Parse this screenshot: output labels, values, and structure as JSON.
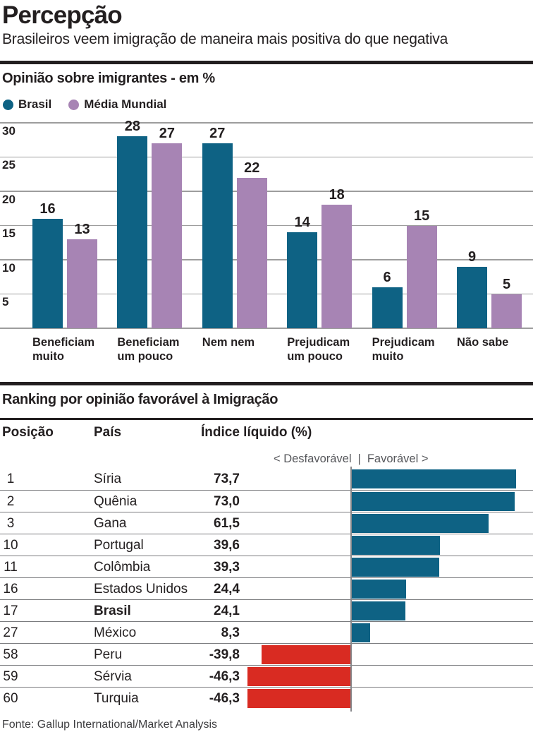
{
  "page": {
    "title": "Percepção",
    "subtitle": "Brasileiros veem imigração de maneira mais positiva do que negativa",
    "source": "Fonte: Gallup International/Market Analysis"
  },
  "colors": {
    "text": "#231f20",
    "brasil": "#0e6284",
    "media_mundial": "#a784b4",
    "negative": "#d92b22",
    "grid": "#9d9d9d"
  },
  "chart_data": [
    {
      "type": "bar",
      "title": "Opinião sobre imigrantes - em %",
      "categories": [
        [
          "Beneficiam",
          "muito"
        ],
        [
          "Beneficiam",
          "um pouco"
        ],
        [
          "Nem nem"
        ],
        [
          "Prejudicam",
          "um pouco"
        ],
        [
          "Prejudicam",
          "muito"
        ],
        [
          "Não sabe"
        ]
      ],
      "series": [
        {
          "name": "Brasil",
          "color": "#0e6284",
          "values": [
            16,
            28,
            27,
            14,
            6,
            9
          ]
        },
        {
          "name": "Média Mundial",
          "color": "#a784b4",
          "values": [
            13,
            27,
            22,
            18,
            15,
            5
          ]
        }
      ],
      "yticks": [
        5,
        10,
        15,
        20,
        25,
        30
      ],
      "ylim": [
        0,
        31
      ],
      "grid": true,
      "legend_position": "top-left",
      "ylabel": "",
      "xlabel": ""
    },
    {
      "type": "bar-horizontal",
      "title": "Ranking por opinião favorável à Imigração",
      "columns": [
        "Posição",
        "País",
        "Índice líquido (%)"
      ],
      "direction_labels": {
        "left": "< Desfavorável",
        "separator": "|",
        "right": "Favorável >"
      },
      "positive_color": "#0e6284",
      "negative_color": "#d92b22",
      "xlim": [
        -75,
        80
      ],
      "rows": [
        {
          "position": "1",
          "country": "Síria",
          "value": 73.7,
          "display": "73,7",
          "bold": false
        },
        {
          "position": "2",
          "country": "Quênia",
          "value": 73.0,
          "display": "73,0",
          "bold": false
        },
        {
          "position": "3",
          "country": "Gana",
          "value": 61.5,
          "display": "61,5",
          "bold": false
        },
        {
          "position": "10",
          "country": "Portugal",
          "value": 39.6,
          "display": "39,6",
          "bold": false
        },
        {
          "position": "11",
          "country": "Colômbia",
          "value": 39.3,
          "display": "39,3",
          "bold": false
        },
        {
          "position": "16",
          "country": "Estados Unidos",
          "value": 24.4,
          "display": "24,4",
          "bold": false
        },
        {
          "position": "17",
          "country": "Brasil",
          "value": 24.1,
          "display": "24,1",
          "bold": true
        },
        {
          "position": "27",
          "country": "México",
          "value": 8.3,
          "display": "8,3",
          "bold": false
        },
        {
          "position": "58",
          "country": "Peru",
          "value": -39.8,
          "display": "-39,8",
          "bold": false
        },
        {
          "position": "59",
          "country": "Sérvia",
          "value": -46.3,
          "display": "-46,3",
          "bold": false
        },
        {
          "position": "60",
          "country": "Turquia",
          "value": -46.3,
          "display": "-46,3",
          "bold": false
        }
      ]
    }
  ]
}
